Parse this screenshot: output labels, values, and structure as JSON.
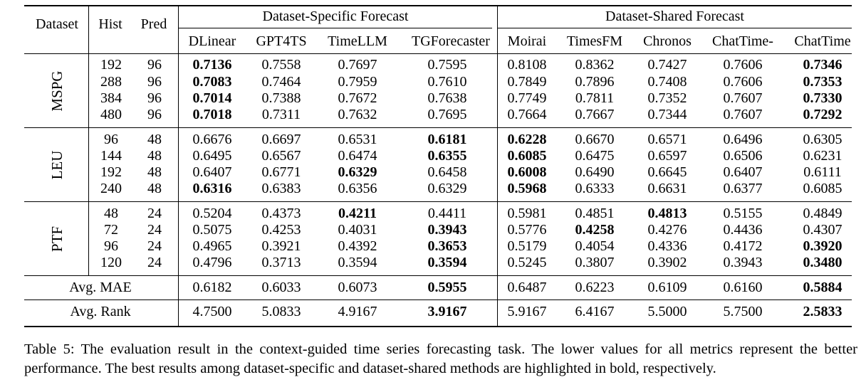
{
  "table": {
    "header": {
      "dataset": "Dataset",
      "hist": "Hist",
      "pred": "Pred",
      "group_specific": "Dataset-Specific Forecast",
      "group_shared": "Dataset-Shared Forecast",
      "models": [
        "DLinear",
        "GPT4TS",
        "TimeLLM",
        "TGForecaster",
        "Moirai",
        "TimesFM",
        "Chronos",
        "ChatTime-",
        "ChatTime"
      ]
    },
    "groups": [
      {
        "name": "MSPG",
        "rows": [
          {
            "hist": "192",
            "pred": "96",
            "vals": [
              "0.7136",
              "0.7558",
              "0.7697",
              "0.7595",
              "0.8108",
              "0.8362",
              "0.7427",
              "0.7606",
              "0.7346"
            ],
            "bold": [
              0,
              8
            ]
          },
          {
            "hist": "288",
            "pred": "96",
            "vals": [
              "0.7083",
              "0.7464",
              "0.7959",
              "0.7610",
              "0.7849",
              "0.7896",
              "0.7408",
              "0.7606",
              "0.7353"
            ],
            "bold": [
              0,
              8
            ]
          },
          {
            "hist": "384",
            "pred": "96",
            "vals": [
              "0.7014",
              "0.7388",
              "0.7672",
              "0.7638",
              "0.7749",
              "0.7811",
              "0.7352",
              "0.7607",
              "0.7330"
            ],
            "bold": [
              0,
              8
            ]
          },
          {
            "hist": "480",
            "pred": "96",
            "vals": [
              "0.7018",
              "0.7311",
              "0.7632",
              "0.7695",
              "0.7664",
              "0.7667",
              "0.7344",
              "0.7607",
              "0.7292"
            ],
            "bold": [
              0,
              8
            ]
          }
        ]
      },
      {
        "name": "LEU",
        "rows": [
          {
            "hist": "96",
            "pred": "48",
            "vals": [
              "0.6676",
              "0.6697",
              "0.6531",
              "0.6181",
              "0.6228",
              "0.6670",
              "0.6571",
              "0.6496",
              "0.6305"
            ],
            "bold": [
              3,
              4
            ]
          },
          {
            "hist": "144",
            "pred": "48",
            "vals": [
              "0.6495",
              "0.6567",
              "0.6474",
              "0.6355",
              "0.6085",
              "0.6475",
              "0.6597",
              "0.6506",
              "0.6231"
            ],
            "bold": [
              3,
              4
            ]
          },
          {
            "hist": "192",
            "pred": "48",
            "vals": [
              "0.6407",
              "0.6771",
              "0.6329",
              "0.6458",
              "0.6008",
              "0.6490",
              "0.6645",
              "0.6407",
              "0.6111"
            ],
            "bold": [
              2,
              4
            ]
          },
          {
            "hist": "240",
            "pred": "48",
            "vals": [
              "0.6316",
              "0.6383",
              "0.6356",
              "0.6329",
              "0.5968",
              "0.6333",
              "0.6631",
              "0.6377",
              "0.6085"
            ],
            "bold": [
              0,
              4
            ]
          }
        ]
      },
      {
        "name": "PTF",
        "rows": [
          {
            "hist": "48",
            "pred": "24",
            "vals": [
              "0.5204",
              "0.4373",
              "0.4211",
              "0.4411",
              "0.5981",
              "0.4851",
              "0.4813",
              "0.5155",
              "0.4849"
            ],
            "bold": [
              2,
              6
            ]
          },
          {
            "hist": "72",
            "pred": "24",
            "vals": [
              "0.5075",
              "0.4253",
              "0.4031",
              "0.3943",
              "0.5776",
              "0.4258",
              "0.4276",
              "0.4436",
              "0.4307"
            ],
            "bold": [
              3,
              5
            ]
          },
          {
            "hist": "96",
            "pred": "24",
            "vals": [
              "0.4965",
              "0.3921",
              "0.4392",
              "0.3653",
              "0.5179",
              "0.4054",
              "0.4336",
              "0.4172",
              "0.3920"
            ],
            "bold": [
              3,
              8
            ]
          },
          {
            "hist": "120",
            "pred": "24",
            "vals": [
              "0.4796",
              "0.3713",
              "0.3594",
              "0.3594",
              "0.5245",
              "0.3807",
              "0.3902",
              "0.3943",
              "0.3480"
            ],
            "bold": [
              3,
              8
            ]
          }
        ]
      }
    ],
    "summary": [
      {
        "label": "Avg. MAE",
        "vals": [
          "0.6182",
          "0.6033",
          "0.6073",
          "0.5955",
          "0.6487",
          "0.6223",
          "0.6109",
          "0.6160",
          "0.5884"
        ],
        "bold": [
          3,
          8
        ]
      },
      {
        "label": "Avg. Rank",
        "vals": [
          "4.7500",
          "5.0833",
          "4.9167",
          "3.9167",
          "5.9167",
          "6.4167",
          "5.5000",
          "5.7500",
          "2.5833"
        ],
        "bold": [
          3,
          8
        ]
      }
    ]
  },
  "caption": "Table 5: The evaluation result in the context-guided time series forecasting task. The lower values for all metrics represent the better performance. The best results among dataset-specific and dataset-shared methods are highlighted in bold, respectively."
}
